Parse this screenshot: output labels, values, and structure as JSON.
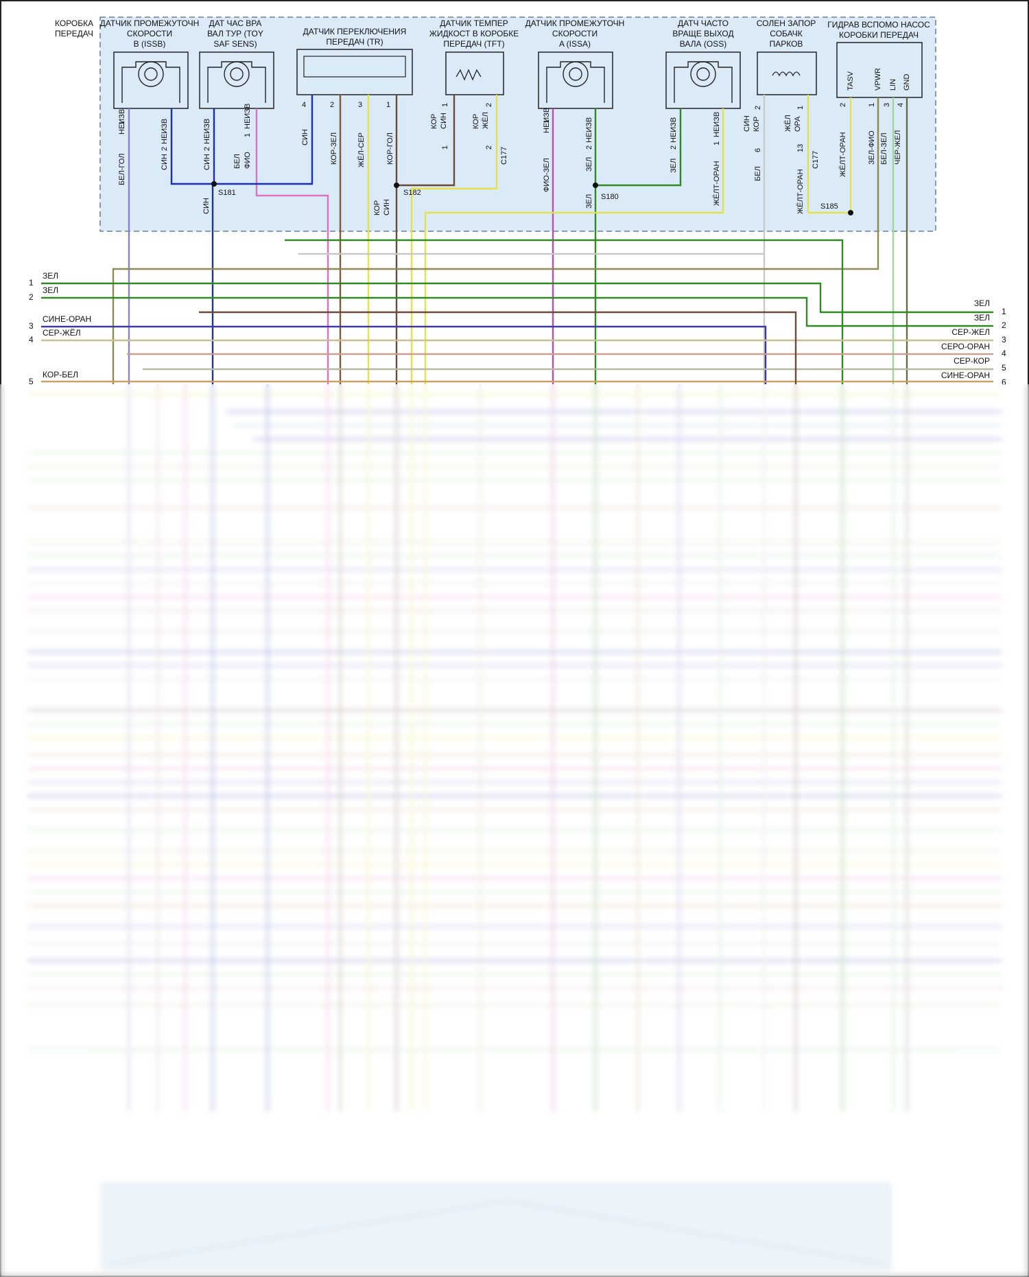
{
  "title_left": [
    "КОРОБКА",
    "ПЕРЕДАЧ"
  ],
  "components": [
    {
      "id": "issb",
      "lines": [
        "ДАТЧИК ПРОМЕЖУТОЧН",
        "СКОРОСТИ",
        "B (ISSB)"
      ]
    },
    {
      "id": "tss",
      "lines": [
        "ДАТ ЧАС ВРА",
        "ВАЛ ТУР (TOY",
        "SAF SENS)"
      ]
    },
    {
      "id": "tr",
      "lines": [
        "ДАТЧИК ПЕРЕКЛЮЧЕНИЯ",
        "ПЕРЕДАЧ (TR)"
      ]
    },
    {
      "id": "tft",
      "lines": [
        "ДАТЧИК ТЕМПЕР",
        "ЖИДКОСТ В КОРОБКЕ",
        "ПЕРЕДАЧ (TFT)"
      ]
    },
    {
      "id": "issa",
      "lines": [
        "ДАТЧИК ПРОМЕЖУТОЧН",
        "СКОРОСТИ",
        "A (ISSA)"
      ]
    },
    {
      "id": "oss",
      "lines": [
        "ДАТЧ ЧАСТО",
        "ВРАЩЕ ВЫХОД",
        "ВАЛА (OSS)"
      ]
    },
    {
      "id": "park",
      "lines": [
        "СОЛЕН ЗАПОР",
        "СОБАЧК",
        "ПАРКОВ"
      ]
    },
    {
      "id": "pump",
      "lines": [
        "ГИДРАВ ВСПОМО НАСОС",
        "КОРОБКИ ПЕРЕДАЧ"
      ]
    }
  ],
  "pump_pins": [
    "TASV",
    "VPWR",
    "LIN",
    "GND"
  ],
  "pin_labels": [
    "БЕЛ-ГОЛ",
    "1",
    "НЕИЗВ",
    "СИН",
    "2",
    "НЕИЗВ",
    "СИН",
    "2",
    "НЕИЗВ",
    "БЕЛ",
    "ФИО",
    "1",
    "НЕИЗВ",
    "4",
    "2",
    "3",
    "1",
    "СИН",
    "КОР-ЗЕЛ",
    "ЖЁЛ-СЕР",
    "КОР-ГОЛ",
    "КОР",
    "СИН",
    "1",
    "КОР",
    "ЖЁЛ",
    "2",
    "1",
    "2",
    "C177",
    "ФИО-ЗЕЛ",
    "1",
    "НЕИЗВ",
    "ЗЕЛ",
    "2",
    "НЕИЗВ",
    "ЗЕЛ",
    "2",
    "НЕИЗВ",
    "ЖЁЛТ-ОРАН",
    "1",
    "НЕИЗВ",
    "СИН",
    "КОР",
    "2",
    "ЖЁЛ",
    "ОРА",
    "1",
    "6",
    "13",
    "БЕЛ",
    "C177",
    "ЖЁЛТ-ОРАН",
    "2",
    "1",
    "3",
    "4",
    "ЖЁЛТ-ОРАН",
    "ЗЕЛ-ФИО",
    "БЕЛ-ЗЕЛ",
    "ЧЕР-ЖЕЛ",
    "СИН",
    "КОР",
    "СИН",
    "ЗЕЛ"
  ],
  "splices": [
    "S181",
    "S182",
    "S180",
    "S185"
  ],
  "left_wires": [
    {
      "num": "1",
      "label": "ЗЕЛ"
    },
    {
      "num": "2",
      "label": "ЗЕЛ"
    },
    {
      "num": "3",
      "label": "СИНЕ-ОРАН"
    },
    {
      "num": "4",
      "label": "СЕР-ЖЁЛ"
    },
    {
      "num": "5",
      "label": "КОР-БЕЛ"
    }
  ],
  "right_wires": [
    {
      "num": "1",
      "label": "ЗЕЛ"
    },
    {
      "num": "2",
      "label": "ЗЕЛ"
    },
    {
      "num": "3",
      "label": "СЕР-ЖЕЛ"
    },
    {
      "num": "4",
      "label": "СЕРО-ОРАН"
    },
    {
      "num": "5",
      "label": "СЕР-КОР"
    },
    {
      "num": "6",
      "label": "СИНЕ-ОРАН"
    }
  ],
  "colors": {
    "module_bg": "#dbeaf7",
    "green": "#2e8b22",
    "blue": "#1a2fb4",
    "yellow": "#e6e14a",
    "pink": "#e070c0",
    "purple": "#7a6ac8",
    "brown": "#6b4a3a",
    "grey": "#b9b9b9",
    "olive": "#8f8a55"
  }
}
